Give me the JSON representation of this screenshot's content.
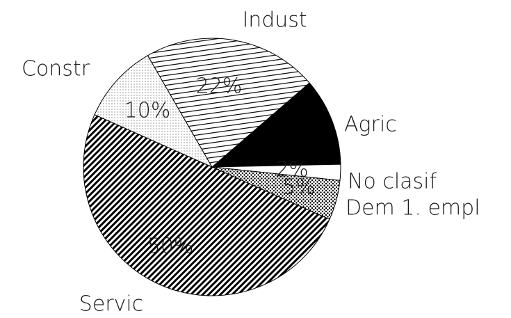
{
  "chart_data": {
    "type": "pie",
    "categories": [
      "Agric",
      "No clasif",
      "Dem 1. empl",
      "Servic",
      "Constr",
      "Indust"
    ],
    "values": [
      11,
      2,
      5,
      50,
      10,
      22
    ],
    "value_labels": [
      null,
      "2%",
      "5%",
      "50%",
      "10%",
      "22%"
    ]
  }
}
